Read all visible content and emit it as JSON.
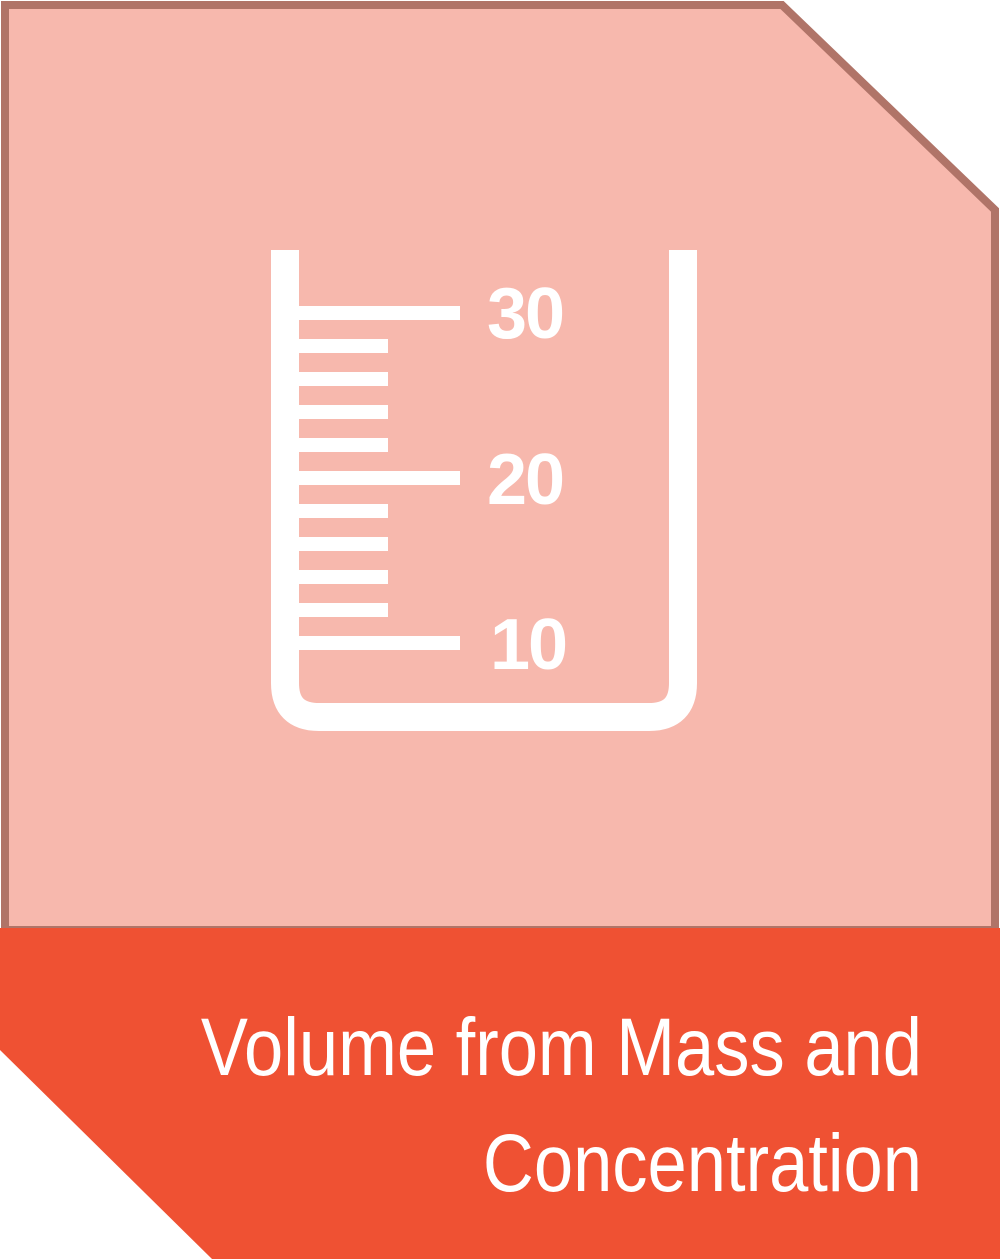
{
  "tile": {
    "title_line_1": "Volume from Mass and",
    "title_line_2": "Concentration",
    "colors": {
      "panel": "#f7b8ad",
      "border": "#b07468",
      "banner": "#ef5133",
      "icon": "#ffffff"
    }
  },
  "icon": {
    "name": "beaker-icon",
    "scale_labels": [
      "30",
      "20",
      "10"
    ]
  }
}
